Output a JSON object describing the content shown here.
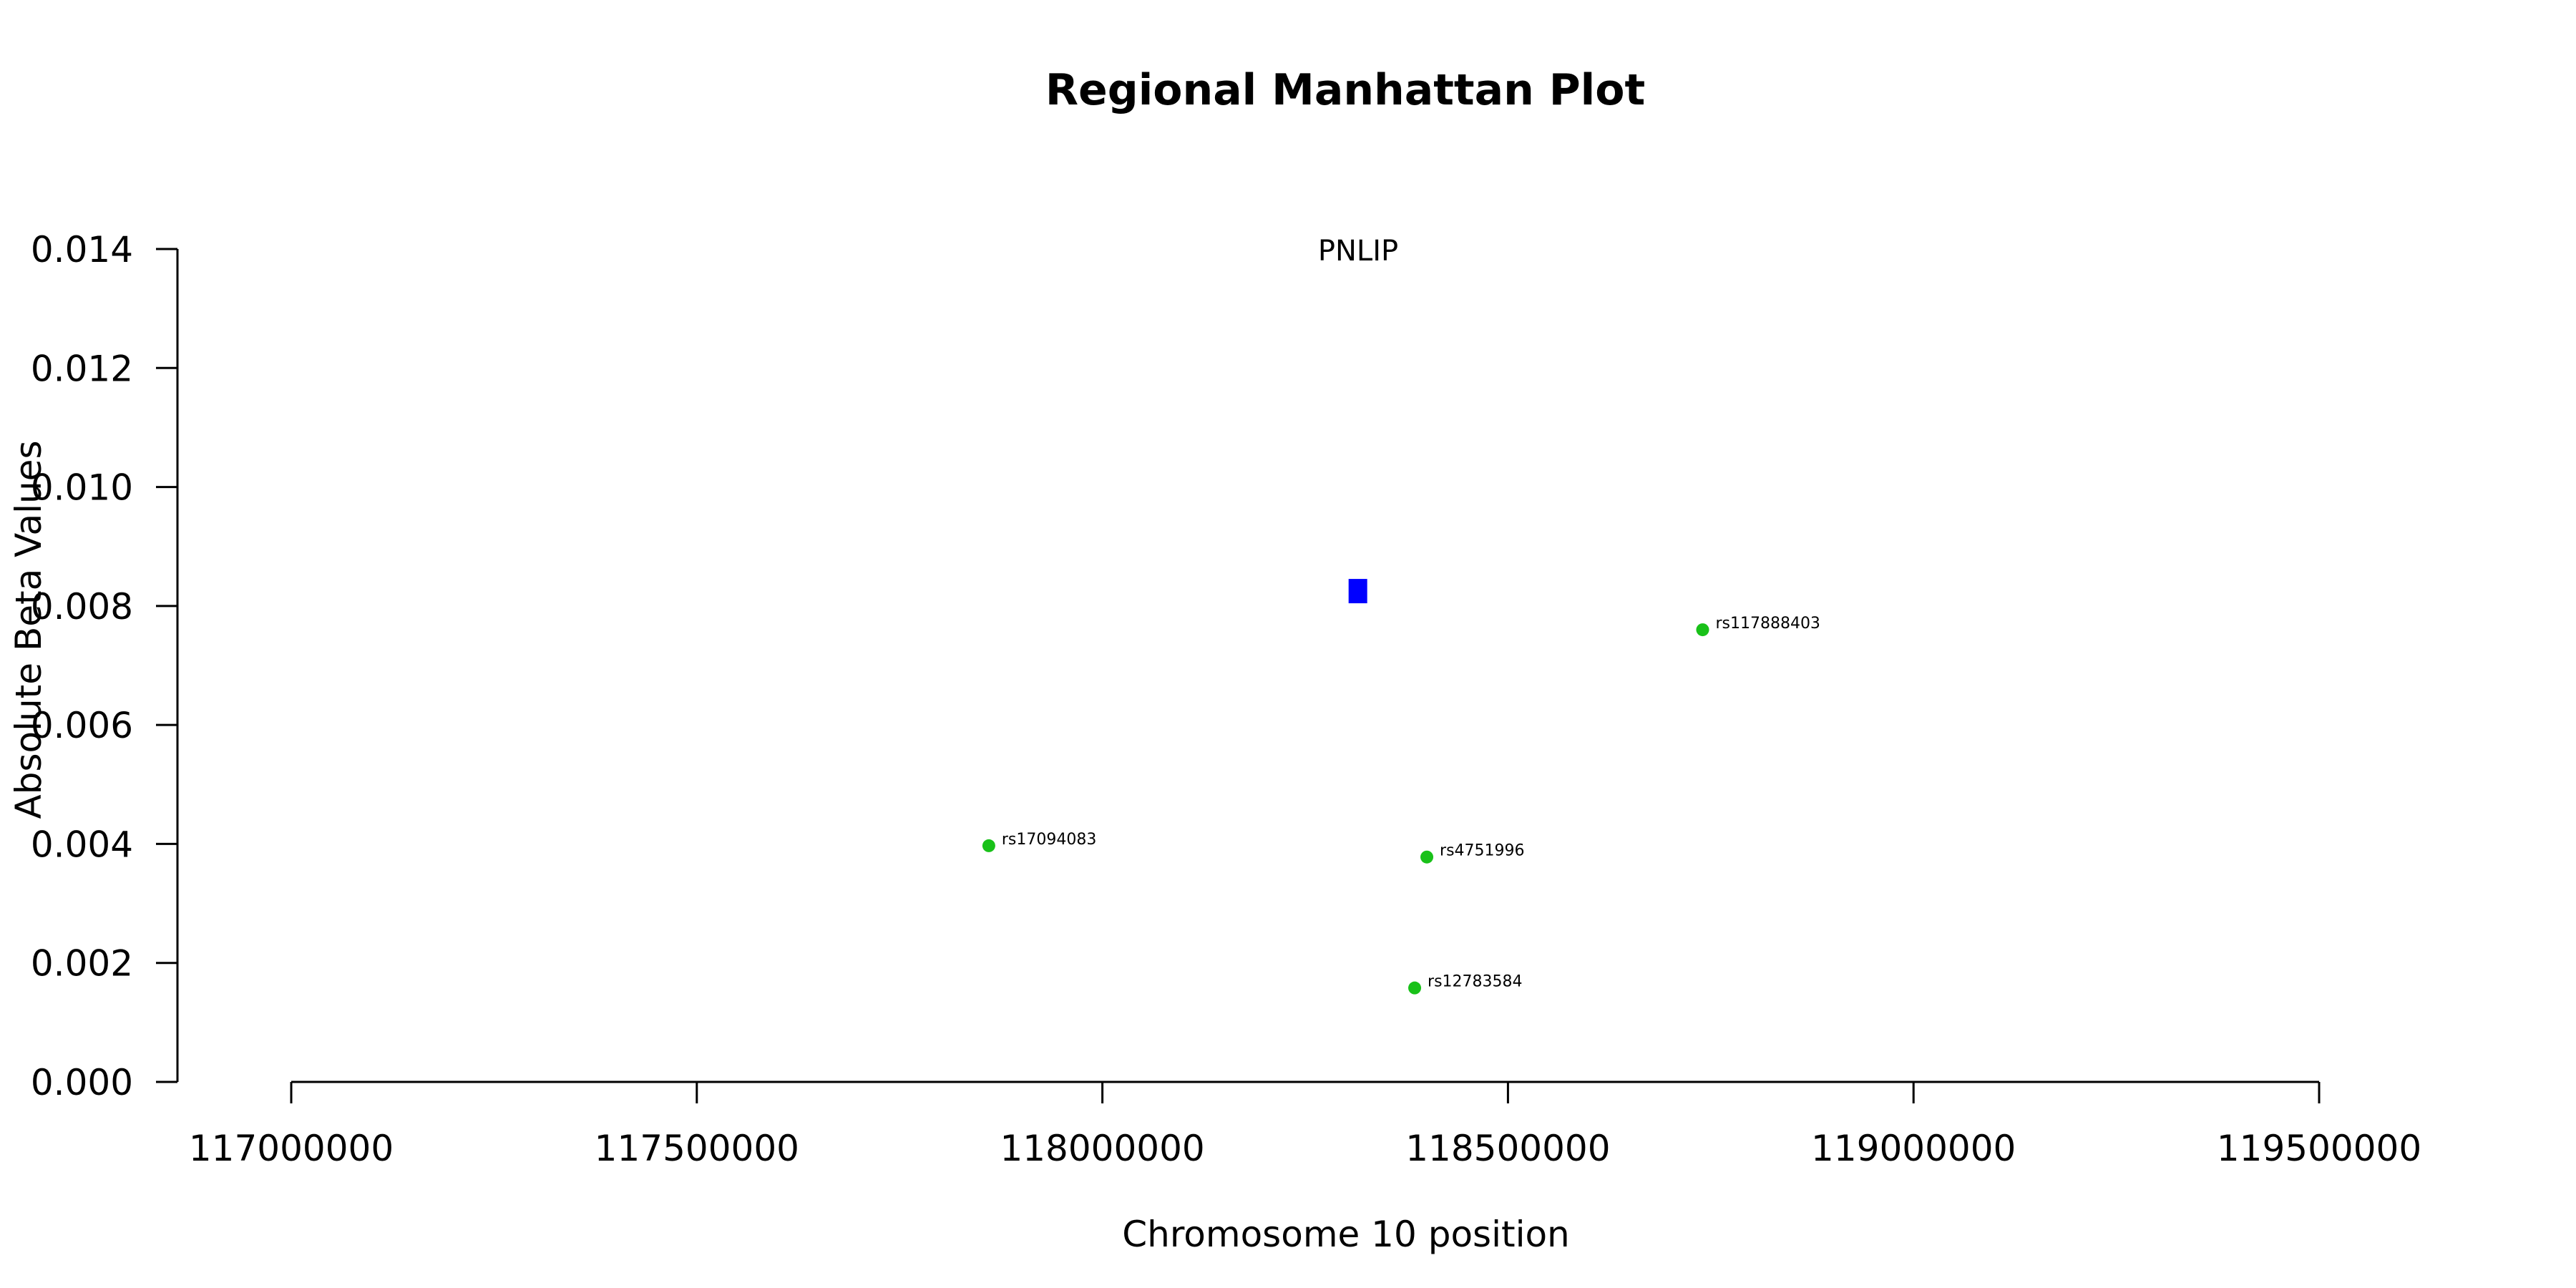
{
  "chart_data": {
    "type": "scatter",
    "title": "Regional Manhattan Plot",
    "xlabel": "Chromosome 10 position",
    "ylabel": "Absolute Beta Values",
    "xlim": [
      117000000,
      119500000
    ],
    "ylim": [
      0,
      0.014
    ],
    "x_ticks": [
      117000000,
      117500000,
      118000000,
      118500000,
      119000000,
      119500000
    ],
    "x_tick_labels": [
      "117000000",
      "117500000",
      "118000000",
      "118500000",
      "119000000",
      "119500000"
    ],
    "y_ticks": [
      0,
      0.002,
      0.004,
      0.006,
      0.008,
      0.01,
      0.012,
      0.014
    ],
    "y_tick_labels": [
      "0.000",
      "0.002",
      "0.004",
      "0.006",
      "0.008",
      "0.010",
      "0.012",
      "0.014"
    ],
    "grid": false,
    "gene": {
      "name": "PNLIP",
      "x": 118315000,
      "y": 0.00825,
      "color": "#0000ff"
    },
    "snp_color": "#19c119",
    "points": [
      {
        "label": "rs117888403",
        "x": 118740000,
        "y": 0.0076
      },
      {
        "label": "rs17094083",
        "x": 117860000,
        "y": 0.00397
      },
      {
        "label": "rs4751996",
        "x": 118400000,
        "y": 0.00378
      },
      {
        "label": "rs12783584",
        "x": 118385000,
        "y": 0.00158
      }
    ]
  }
}
